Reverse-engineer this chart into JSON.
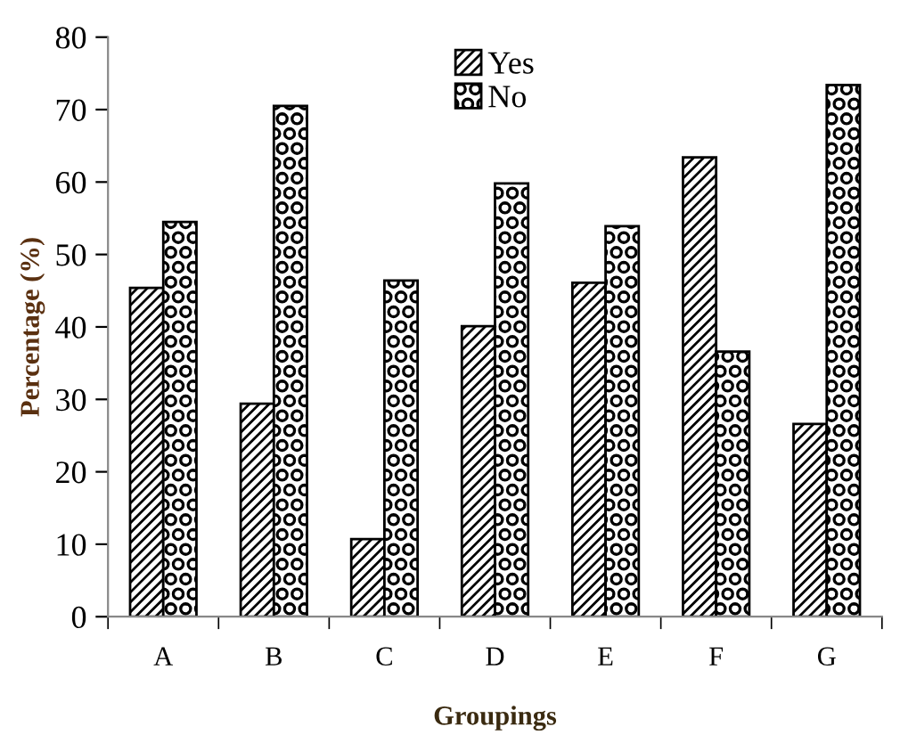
{
  "chart_data": {
    "type": "bar",
    "xlabel": "Groupings",
    "ylabel": "Percentage (%)",
    "categories": [
      "A",
      "B",
      "C",
      "D",
      "E",
      "F",
      "G"
    ],
    "series": [
      {
        "name": "Yes",
        "color": "#000000",
        "values": [
          45.4,
          29.4,
          10.7,
          40.1,
          46.1,
          63.4,
          26.6
        ]
      },
      {
        "name": "No",
        "color": "#000000",
        "values": [
          54.5,
          70.5,
          46.4,
          59.8,
          53.9,
          36.6,
          73.4
        ]
      }
    ],
    "ylim": [
      0,
      80
    ],
    "yticks": [
      0,
      10,
      20,
      30,
      40,
      50,
      60,
      70,
      80
    ],
    "grid": false,
    "legend": "top"
  }
}
